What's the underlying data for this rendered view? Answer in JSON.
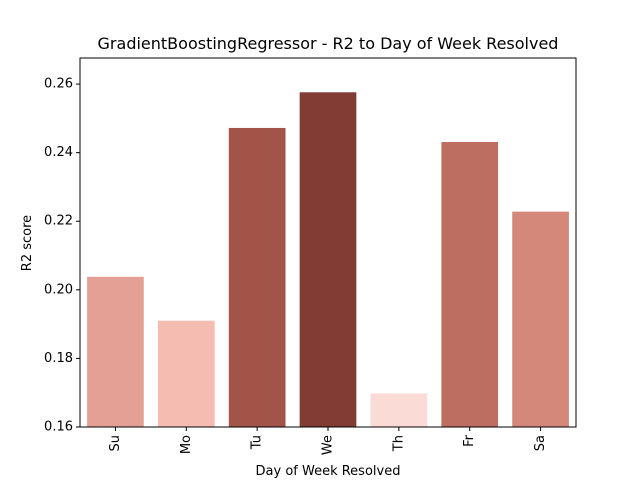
{
  "chart_data": {
    "type": "bar",
    "title": "GradientBoostingRegressor - R2 to Day of Week Resolved",
    "xlabel": "Day of Week Resolved",
    "ylabel": "R2 score",
    "categories": [
      "Su",
      "Mo",
      "Tu",
      "We",
      "Th",
      "Fr",
      "Sa"
    ],
    "values": [
      0.2038,
      0.191,
      0.2472,
      0.2576,
      0.1698,
      0.2431,
      0.2228
    ],
    "colors": [
      "#e5a096",
      "#f5bcb2",
      "#a35448",
      "#823c33",
      "#fbdbd5",
      "#bd6e61",
      "#d4887a"
    ],
    "ylim": [
      0.16,
      0.2676
    ],
    "yticks": [
      0.16,
      0.18,
      0.2,
      0.22,
      0.24,
      0.26
    ],
    "ytick_labels": [
      "0.16",
      "0.18",
      "0.20",
      "0.22",
      "0.24",
      "0.26"
    ],
    "grid": false,
    "legend": null
  }
}
